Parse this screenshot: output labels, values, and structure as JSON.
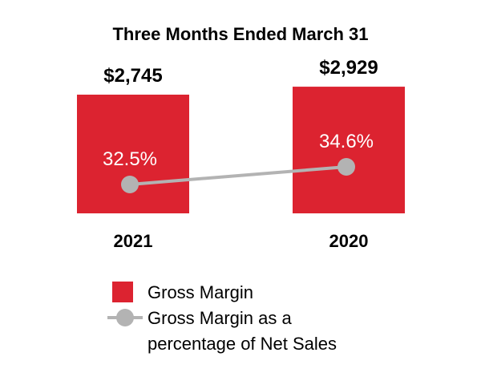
{
  "chart_data": {
    "type": "bar",
    "title": "Three Months Ended March 31",
    "categories": [
      "2021",
      "2020"
    ],
    "series": [
      {
        "name": "Gross Margin",
        "kind": "bar",
        "values": [
          2745,
          2929
        ],
        "labels": [
          "$2,745",
          "$2,929"
        ],
        "color": "#dc2330"
      },
      {
        "name": "Gross Margin as a percentage of Net Sales",
        "name_lines": [
          "Gross Margin as a",
          "percentage of Net Sales"
        ],
        "kind": "line",
        "values": [
          32.5,
          34.6
        ],
        "labels": [
          "32.5%",
          "34.6%"
        ],
        "color": "#b3b3b3"
      }
    ],
    "legend": "bottom"
  }
}
